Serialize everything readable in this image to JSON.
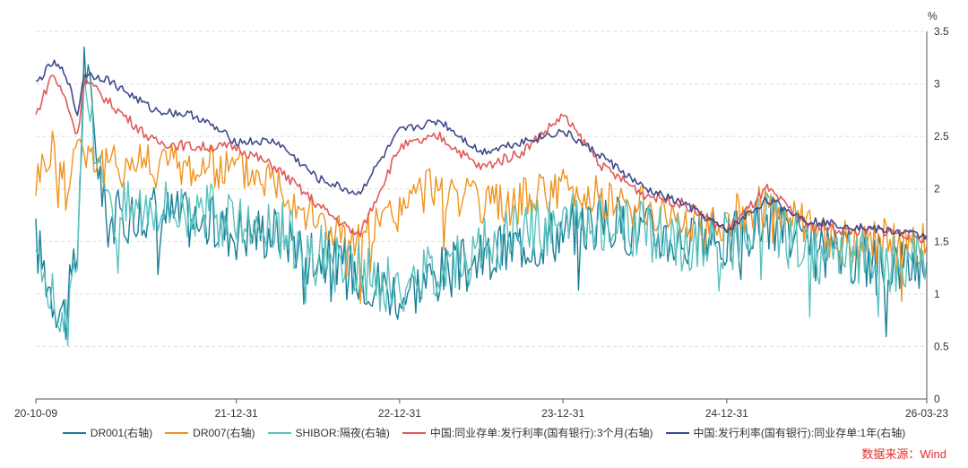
{
  "chart_data": {
    "type": "line",
    "title": "",
    "y_unit": "%",
    "y_axis_position": "right",
    "ylim": [
      0,
      3.5
    ],
    "y_ticks": [
      "0",
      "0.5",
      "1",
      "1.5",
      "2",
      "2.5",
      "3",
      "3.5"
    ],
    "x_ticks": [
      "20-10-09",
      "21-12-31",
      "22-12-31",
      "23-12-31",
      "24-12-31",
      "26-03-23"
    ],
    "x_tick_dates": [
      "2020-10-09",
      "2021-12-31",
      "2022-12-31",
      "2023-12-31",
      "2024-12-31",
      "2026-03-23"
    ],
    "source": "数据来源：Wind",
    "source_color": "#e0302a",
    "series": [
      {
        "name": "DR001(右轴)",
        "color": "#1a7e96",
        "points": [
          [
            "2020-10-09",
            1.5
          ],
          [
            "2020-11-15",
            1.0
          ],
          [
            "2020-12-15",
            0.8
          ],
          [
            "2021-01-10",
            1.4
          ],
          [
            "2021-01-25",
            3.3
          ],
          [
            "2021-03-15",
            1.7
          ],
          [
            "2021-06-30",
            1.8
          ],
          [
            "2021-09-30",
            1.7
          ],
          [
            "2021-12-31",
            1.6
          ],
          [
            "2022-03-31",
            1.6
          ],
          [
            "2022-06-30",
            1.4
          ],
          [
            "2022-09-30",
            1.2
          ],
          [
            "2022-12-31",
            1.0
          ],
          [
            "2023-03-31",
            1.2
          ],
          [
            "2023-06-30",
            1.3
          ],
          [
            "2023-09-30",
            1.5
          ],
          [
            "2023-12-31",
            1.6
          ],
          [
            "2024-03-31",
            1.7
          ],
          [
            "2024-06-30",
            1.6
          ],
          [
            "2024-09-30",
            1.5
          ],
          [
            "2024-12-31",
            1.5
          ],
          [
            "2025-03-31",
            1.7
          ],
          [
            "2025-06-30",
            1.4
          ],
          [
            "2025-09-30",
            1.35
          ],
          [
            "2025-12-31",
            1.3
          ],
          [
            "2026-03-23",
            1.3
          ]
        ]
      },
      {
        "name": "DR007(右轴)",
        "color": "#f0941f",
        "points": [
          [
            "2020-10-09",
            2.1
          ],
          [
            "2020-11-15",
            2.4
          ],
          [
            "2020-12-15",
            2.0
          ],
          [
            "2021-01-10",
            2.5
          ],
          [
            "2021-01-25",
            2.4
          ],
          [
            "2021-03-15",
            2.2
          ],
          [
            "2021-06-30",
            2.3
          ],
          [
            "2021-09-30",
            2.2
          ],
          [
            "2021-12-31",
            2.2
          ],
          [
            "2022-03-31",
            2.1
          ],
          [
            "2022-06-30",
            1.7
          ],
          [
            "2022-09-30",
            1.5
          ],
          [
            "2022-12-31",
            1.8
          ],
          [
            "2023-03-31",
            2.1
          ],
          [
            "2023-06-30",
            1.8
          ],
          [
            "2023-09-30",
            1.9
          ],
          [
            "2023-12-31",
            2.0
          ],
          [
            "2024-03-31",
            1.9
          ],
          [
            "2024-06-30",
            1.8
          ],
          [
            "2024-09-30",
            1.7
          ],
          [
            "2024-12-31",
            1.7
          ],
          [
            "2025-03-31",
            1.9
          ],
          [
            "2025-06-30",
            1.6
          ],
          [
            "2025-09-30",
            1.5
          ],
          [
            "2025-12-31",
            1.5
          ],
          [
            "2026-03-23",
            1.45
          ]
        ]
      },
      {
        "name": "SHIBOR:隔夜(右轴)",
        "color": "#5bc2bf",
        "points": [
          [
            "2020-10-09",
            1.5
          ],
          [
            "2020-11-15",
            1.0
          ],
          [
            "2020-12-15",
            0.7
          ],
          [
            "2021-01-10",
            1.3
          ],
          [
            "2021-01-25",
            3.1
          ],
          [
            "2021-03-15",
            1.8
          ],
          [
            "2021-06-30",
            1.9
          ],
          [
            "2021-09-30",
            1.8
          ],
          [
            "2021-12-31",
            1.7
          ],
          [
            "2022-03-31",
            1.6
          ],
          [
            "2022-06-30",
            1.4
          ],
          [
            "2022-09-30",
            1.2
          ],
          [
            "2022-12-31",
            1.0
          ],
          [
            "2023-03-31",
            1.3
          ],
          [
            "2023-06-30",
            1.4
          ],
          [
            "2023-09-30",
            1.6
          ],
          [
            "2023-12-31",
            1.7
          ],
          [
            "2024-03-31",
            1.7
          ],
          [
            "2024-06-30",
            1.6
          ],
          [
            "2024-09-30",
            1.5
          ],
          [
            "2024-12-31",
            1.5
          ],
          [
            "2025-03-31",
            1.7
          ],
          [
            "2025-06-30",
            1.4
          ],
          [
            "2025-09-30",
            1.35
          ],
          [
            "2025-12-31",
            1.3
          ],
          [
            "2026-03-23",
            1.3
          ]
        ]
      },
      {
        "name": "中国:同业存单:发行利率(国有银行):3个月(右轴)",
        "color": "#e05a5a",
        "points": [
          [
            "2020-10-09",
            2.7
          ],
          [
            "2020-11-15",
            3.1
          ],
          [
            "2020-12-15",
            2.85
          ],
          [
            "2021-01-10",
            2.5
          ],
          [
            "2021-01-25",
            3.05
          ],
          [
            "2021-03-15",
            2.85
          ],
          [
            "2021-06-30",
            2.45
          ],
          [
            "2021-09-30",
            2.4
          ],
          [
            "2021-12-31",
            2.4
          ],
          [
            "2022-03-31",
            2.2
          ],
          [
            "2022-06-30",
            1.85
          ],
          [
            "2022-09-30",
            1.55
          ],
          [
            "2022-12-31",
            2.4
          ],
          [
            "2023-03-31",
            2.5
          ],
          [
            "2023-06-30",
            2.2
          ],
          [
            "2023-09-30",
            2.35
          ],
          [
            "2023-12-31",
            2.7
          ],
          [
            "2024-03-31",
            2.2
          ],
          [
            "2024-06-30",
            1.95
          ],
          [
            "2024-09-30",
            1.85
          ],
          [
            "2024-12-31",
            1.6
          ],
          [
            "2025-03-31",
            2.0
          ],
          [
            "2025-06-30",
            1.65
          ],
          [
            "2025-09-30",
            1.6
          ],
          [
            "2025-12-31",
            1.6
          ],
          [
            "2026-03-23",
            1.52
          ]
        ]
      },
      {
        "name": "中国:发行利率(国有银行):同业存单:1年(右轴)",
        "color": "#3f4a8a",
        "points": [
          [
            "2020-10-09",
            3.0
          ],
          [
            "2020-11-15",
            3.2
          ],
          [
            "2020-12-15",
            3.1
          ],
          [
            "2021-01-10",
            2.7
          ],
          [
            "2021-01-25",
            3.1
          ],
          [
            "2021-03-15",
            3.05
          ],
          [
            "2021-06-30",
            2.75
          ],
          [
            "2021-09-30",
            2.7
          ],
          [
            "2021-12-31",
            2.45
          ],
          [
            "2022-03-31",
            2.45
          ],
          [
            "2022-06-30",
            2.1
          ],
          [
            "2022-09-30",
            1.95
          ],
          [
            "2022-12-31",
            2.55
          ],
          [
            "2023-03-31",
            2.65
          ],
          [
            "2023-06-30",
            2.35
          ],
          [
            "2023-09-30",
            2.45
          ],
          [
            "2023-12-31",
            2.55
          ],
          [
            "2024-03-31",
            2.3
          ],
          [
            "2024-06-30",
            2.0
          ],
          [
            "2024-09-30",
            1.85
          ],
          [
            "2024-12-31",
            1.6
          ],
          [
            "2025-03-31",
            1.9
          ],
          [
            "2025-06-30",
            1.7
          ],
          [
            "2025-09-30",
            1.65
          ],
          [
            "2025-12-31",
            1.6
          ],
          [
            "2026-03-23",
            1.55
          ]
        ]
      }
    ]
  }
}
